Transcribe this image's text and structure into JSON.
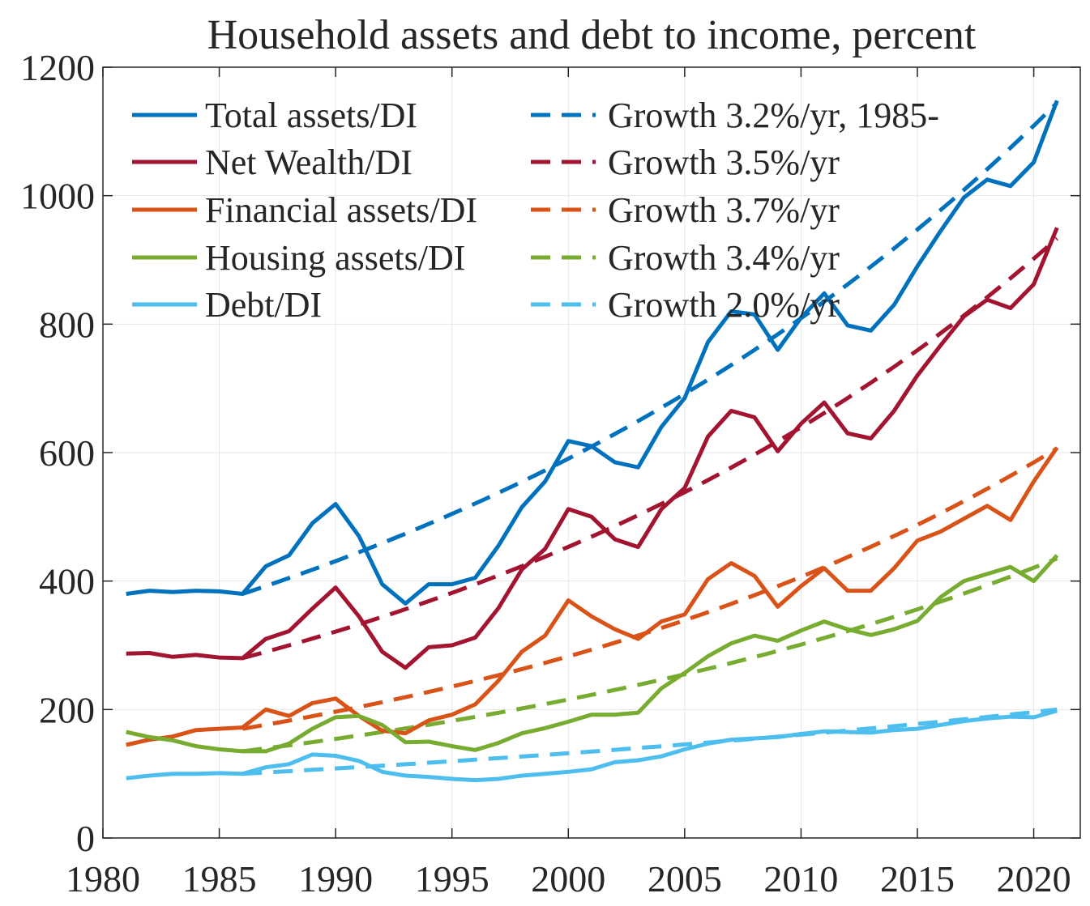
{
  "chart_data": {
    "type": "line",
    "title": "Household assets and debt to income, percent",
    "xlabel": "",
    "ylabel": "",
    "xlim": [
      1980,
      2022
    ],
    "ylim": [
      0,
      1200
    ],
    "grid": true,
    "legend_placement": "top-left",
    "xticks": [
      1980,
      1985,
      1990,
      1995,
      2000,
      2005,
      2010,
      2015,
      2020
    ],
    "yticks": [
      0,
      200,
      400,
      600,
      800,
      1000,
      1200
    ],
    "x": [
      1981,
      1982,
      1983,
      1984,
      1985,
      1986,
      1987,
      1988,
      1989,
      1990,
      1991,
      1992,
      1993,
      1994,
      1995,
      1996,
      1997,
      1998,
      1999,
      2000,
      2001,
      2002,
      2003,
      2004,
      2005,
      2006,
      2007,
      2008,
      2009,
      2010,
      2011,
      2012,
      2013,
      2014,
      2015,
      2016,
      2017,
      2018,
      2019,
      2020,
      2021
    ],
    "series": [
      {
        "name": "Total assets/DI",
        "color": "#0072BD",
        "style": "solid",
        "values": [
          380,
          385,
          383,
          385,
          384,
          380,
          423,
          440,
          490,
          520,
          470,
          395,
          365,
          395,
          395,
          405,
          455,
          515,
          555,
          618,
          610,
          585,
          577,
          640,
          685,
          772,
          820,
          815,
          760,
          810,
          848,
          798,
          790,
          830,
          890,
          945,
          997,
          1025,
          1015,
          1052,
          1148
        ]
      },
      {
        "name": "Net Wealth/DI",
        "color": "#A2142F",
        "style": "solid",
        "values": [
          287,
          288,
          282,
          285,
          281,
          280,
          310,
          322,
          357,
          390,
          345,
          290,
          265,
          297,
          300,
          312,
          358,
          418,
          450,
          512,
          500,
          465,
          453,
          512,
          545,
          625,
          665,
          655,
          602,
          645,
          678,
          630,
          622,
          665,
          720,
          767,
          812,
          838,
          825,
          862,
          950
        ]
      },
      {
        "name": "Financial assets/DI",
        "color": "#D95319",
        "style": "solid",
        "values": [
          145,
          153,
          158,
          168,
          170,
          172,
          200,
          190,
          210,
          217,
          190,
          167,
          163,
          183,
          192,
          208,
          245,
          290,
          315,
          370,
          345,
          325,
          310,
          337,
          348,
          403,
          428,
          408,
          360,
          392,
          420,
          385,
          385,
          420,
          463,
          477,
          497,
          517,
          495,
          555,
          608
        ]
      },
      {
        "name": "Housing assets/DI",
        "color": "#77AC30",
        "style": "solid",
        "values": [
          165,
          157,
          152,
          143,
          138,
          135,
          135,
          147,
          170,
          188,
          190,
          176,
          149,
          150,
          143,
          137,
          148,
          163,
          171,
          181,
          192,
          192,
          195,
          233,
          257,
          283,
          303,
          315,
          307,
          323,
          337,
          325,
          316,
          325,
          338,
          375,
          400,
          411,
          422,
          400,
          440
        ]
      },
      {
        "name": "Debt/DI",
        "color": "#4DBEEE",
        "style": "solid",
        "values": [
          93,
          97,
          100,
          100,
          101,
          100,
          110,
          115,
          130,
          128,
          120,
          103,
          97,
          95,
          92,
          90,
          92,
          97,
          100,
          103,
          107,
          118,
          121,
          127,
          138,
          147,
          153,
          155,
          157,
          162,
          166,
          165,
          164,
          168,
          170,
          176,
          182,
          186,
          189,
          188,
          198
        ]
      }
    ],
    "trends": [
      {
        "name": "Growth 3.2%/yr, 1985-",
        "color": "#0072BD",
        "style": "dashed",
        "start_year": 1986,
        "end_year": 2021,
        "start_value": 380,
        "growth_rate": 0.032
      },
      {
        "name": "Growth 3.5%/yr",
        "color": "#A2142F",
        "style": "dashed",
        "start_year": 1986,
        "end_year": 2021,
        "start_value": 280,
        "growth_rate": 0.035
      },
      {
        "name": "Growth 3.7%/yr",
        "color": "#D95319",
        "style": "dashed",
        "start_year": 1986,
        "end_year": 2021,
        "start_value": 170,
        "growth_rate": 0.037
      },
      {
        "name": "Growth 3.4%/yr",
        "color": "#77AC30",
        "style": "dashed",
        "start_year": 1986,
        "end_year": 2021,
        "start_value": 135,
        "growth_rate": 0.034
      },
      {
        "name": "Growth 2.0%/yr",
        "color": "#4DBEEE",
        "style": "dashed",
        "start_year": 1986,
        "end_year": 2021,
        "start_value": 100,
        "growth_rate": 0.02
      }
    ]
  }
}
